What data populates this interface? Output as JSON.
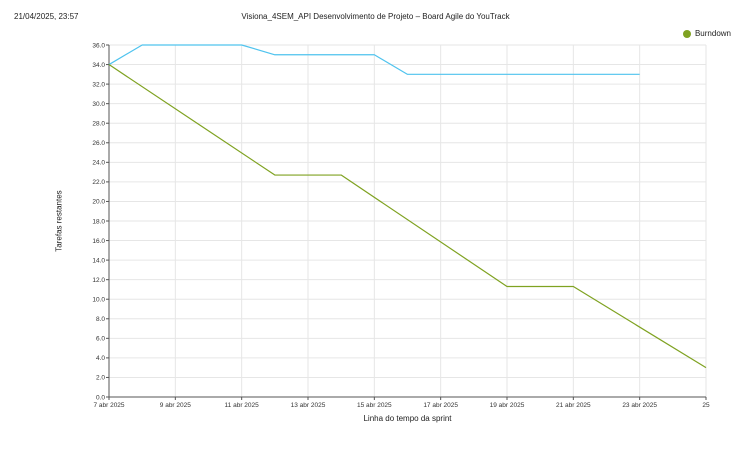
{
  "header": {
    "timestamp": "21/04/2025, 23:57",
    "title": "Visiona_4SEM_API Desenvolvimento de Projeto – Board Agile do YouTrack"
  },
  "colors": {
    "ideal": "#7fa221",
    "remaining": "#4fc3ee",
    "grid": "#e6e6e6",
    "axis": "#555555"
  },
  "chart_data": {
    "type": "line",
    "title": "",
    "xlabel": "Linha do tempo da sprint",
    "ylabel": "Tarefas restantes",
    "ylim": [
      0,
      36
    ],
    "yticks": [
      "0.0",
      "2.0",
      "4.0",
      "6.0",
      "8.0",
      "10.0",
      "12.0",
      "14.0",
      "16.0",
      "18.0",
      "20.0",
      "22.0",
      "24.0",
      "26.0",
      "28.0",
      "30.0",
      "32.0",
      "34.0",
      "36.0"
    ],
    "x_dates": [
      "2025-04-07",
      "2025-04-25"
    ],
    "xticks": [
      {
        "date": "2025-04-07",
        "label": "7 abr 2025"
      },
      {
        "date": "2025-04-09",
        "label": "9 abr 2025"
      },
      {
        "date": "2025-04-11",
        "label": "11 abr 2025"
      },
      {
        "date": "2025-04-13",
        "label": "13 abr 2025"
      },
      {
        "date": "2025-04-15",
        "label": "15 abr 2025"
      },
      {
        "date": "2025-04-17",
        "label": "17 abr 2025"
      },
      {
        "date": "2025-04-19",
        "label": "19 abr 2025"
      },
      {
        "date": "2025-04-21",
        "label": "21 abr 2025"
      },
      {
        "date": "2025-04-23",
        "label": "23 abr 2025"
      },
      {
        "date": "2025-04-25",
        "label": "25"
      }
    ],
    "grid": true,
    "legend_position": "top-right",
    "series": [
      {
        "key": "remaining",
        "name": "",
        "color": "#4fc3ee",
        "points": [
          [
            "2025-04-07",
            34
          ],
          [
            "2025-04-08",
            36
          ],
          [
            "2025-04-09",
            36
          ],
          [
            "2025-04-10",
            36
          ],
          [
            "2025-04-11",
            36
          ],
          [
            "2025-04-12",
            35
          ],
          [
            "2025-04-13",
            35
          ],
          [
            "2025-04-14",
            35
          ],
          [
            "2025-04-15",
            35
          ],
          [
            "2025-04-16",
            33
          ],
          [
            "2025-04-17",
            33
          ],
          [
            "2025-04-18",
            33
          ],
          [
            "2025-04-19",
            33
          ],
          [
            "2025-04-20",
            33
          ],
          [
            "2025-04-21",
            33
          ],
          [
            "2025-04-22",
            33
          ],
          [
            "2025-04-23",
            33
          ]
        ]
      },
      {
        "key": "ideal",
        "name": "Burndown",
        "color": "#7fa221",
        "points": [
          [
            "2025-04-07",
            34
          ],
          [
            "2025-04-12",
            22.7
          ],
          [
            "2025-04-14",
            22.7
          ],
          [
            "2025-04-19",
            11.3
          ],
          [
            "2025-04-21",
            11.3
          ],
          [
            "2025-04-25",
            3.0
          ]
        ]
      }
    ]
  }
}
